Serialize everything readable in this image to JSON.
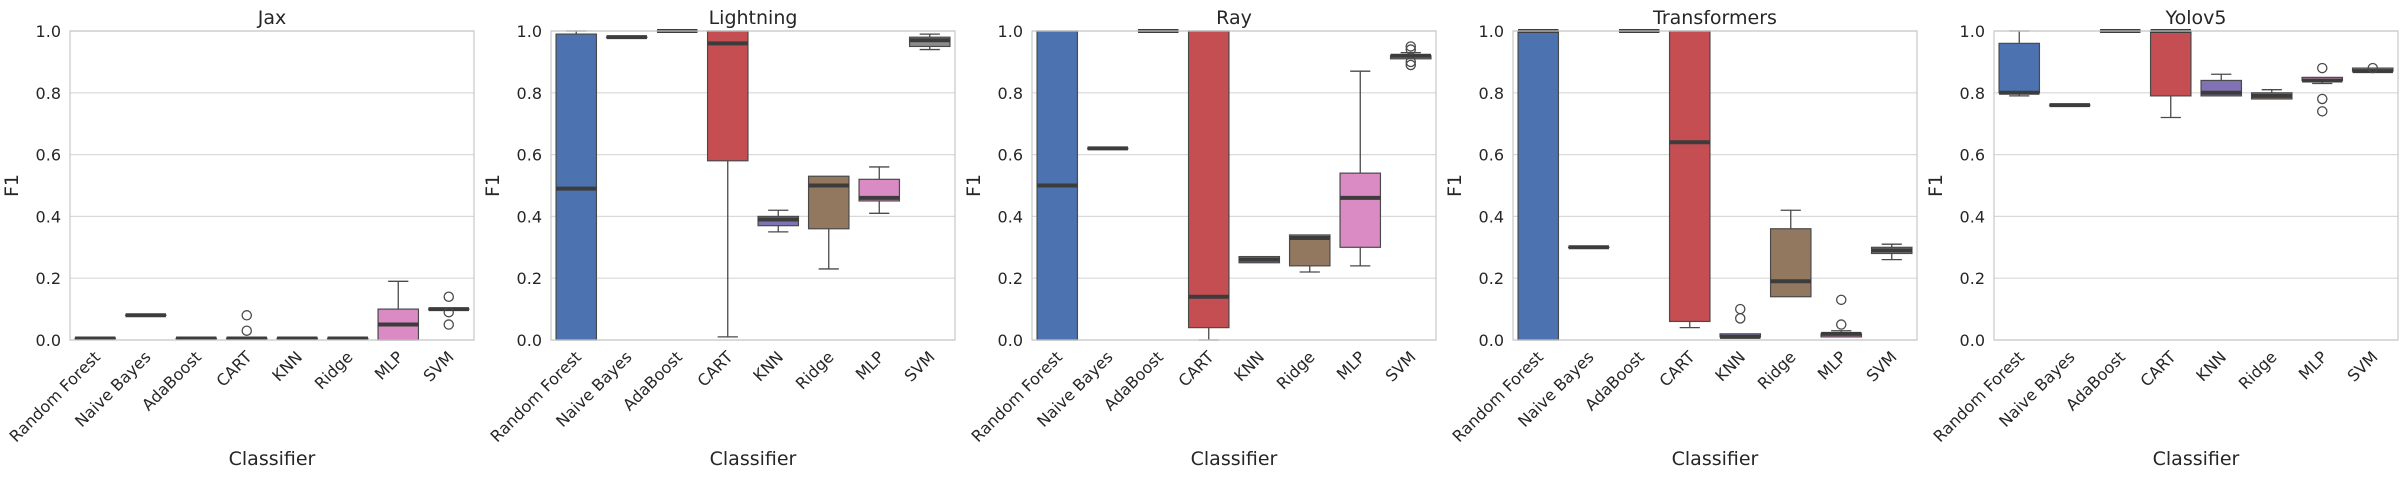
{
  "chart_data": [
    {
      "type": "box",
      "title": "Jax",
      "xlabel": "Classifier",
      "ylabel": "F1",
      "ylim": [
        0,
        1
      ],
      "yticks": [
        "0.0",
        "0.2",
        "0.4",
        "0.6",
        "0.8",
        "1.0"
      ],
      "categories": [
        "Random Forest",
        "Naive Bayes",
        "AdaBoost",
        "CART",
        "KNN",
        "Ridge",
        "MLP",
        "SVM"
      ],
      "boxes": [
        {
          "min": 0.005,
          "q1": 0.005,
          "median": 0.005,
          "q3": 0.005,
          "max": 0.005,
          "outliers": []
        },
        {
          "min": 0.08,
          "q1": 0.08,
          "median": 0.08,
          "q3": 0.08,
          "max": 0.08,
          "outliers": []
        },
        {
          "min": 0.005,
          "q1": 0.005,
          "median": 0.005,
          "q3": 0.005,
          "max": 0.005,
          "outliers": []
        },
        {
          "min": 0.005,
          "q1": 0.005,
          "median": 0.005,
          "q3": 0.005,
          "max": 0.005,
          "outliers": [
            0.03,
            0.08
          ]
        },
        {
          "min": 0.005,
          "q1": 0.005,
          "median": 0.005,
          "q3": 0.005,
          "max": 0.005,
          "outliers": []
        },
        {
          "min": 0.005,
          "q1": 0.005,
          "median": 0.005,
          "q3": 0.005,
          "max": 0.005,
          "outliers": []
        },
        {
          "min": 0.0,
          "q1": 0.0,
          "median": 0.05,
          "q3": 0.1,
          "max": 0.19,
          "outliers": []
        },
        {
          "min": 0.1,
          "q1": 0.1,
          "median": 0.1,
          "q3": 0.1,
          "max": 0.1,
          "outliers": [
            0.05,
            0.09,
            0.14
          ]
        }
      ]
    },
    {
      "type": "box",
      "title": "Lightning",
      "xlabel": "Classifier",
      "ylabel": "F1",
      "ylim": [
        0,
        1
      ],
      "yticks": [
        "0.0",
        "0.2",
        "0.4",
        "0.6",
        "0.8",
        "1.0"
      ],
      "categories": [
        "Random Forest",
        "Naive Bayes",
        "AdaBoost",
        "CART",
        "KNN",
        "Ridge",
        "MLP",
        "SVM"
      ],
      "boxes": [
        {
          "min": 0.0,
          "q1": 0.0,
          "median": 0.49,
          "q3": 0.99,
          "max": 1.0,
          "outliers": []
        },
        {
          "min": 0.98,
          "q1": 0.98,
          "median": 0.98,
          "q3": 0.98,
          "max": 0.98,
          "outliers": []
        },
        {
          "min": 1.0,
          "q1": 1.0,
          "median": 1.0,
          "q3": 1.0,
          "max": 1.0,
          "outliers": []
        },
        {
          "min": 0.01,
          "q1": 0.58,
          "median": 0.96,
          "q3": 1.0,
          "max": 1.0,
          "outliers": []
        },
        {
          "min": 0.35,
          "q1": 0.37,
          "median": 0.39,
          "q3": 0.4,
          "max": 0.42,
          "outliers": []
        },
        {
          "min": 0.23,
          "q1": 0.36,
          "median": 0.5,
          "q3": 0.53,
          "max": 0.53,
          "outliers": []
        },
        {
          "min": 0.41,
          "q1": 0.45,
          "median": 0.46,
          "q3": 0.52,
          "max": 0.56,
          "outliers": []
        },
        {
          "min": 0.94,
          "q1": 0.95,
          "median": 0.97,
          "q3": 0.98,
          "max": 0.99,
          "outliers": []
        }
      ]
    },
    {
      "type": "box",
      "title": "Ray",
      "xlabel": "Classifier",
      "ylabel": "F1",
      "ylim": [
        0,
        1
      ],
      "yticks": [
        "0.0",
        "0.2",
        "0.4",
        "0.6",
        "0.8",
        "1.0"
      ],
      "categories": [
        "Random Forest",
        "Naive Bayes",
        "AdaBoost",
        "CART",
        "KNN",
        "Ridge",
        "MLP",
        "SVM"
      ],
      "boxes": [
        {
          "min": 0.0,
          "q1": 0.0,
          "median": 0.5,
          "q3": 1.0,
          "max": 1.0,
          "outliers": []
        },
        {
          "min": 0.62,
          "q1": 0.62,
          "median": 0.62,
          "q3": 0.62,
          "max": 0.62,
          "outliers": []
        },
        {
          "min": 1.0,
          "q1": 1.0,
          "median": 1.0,
          "q3": 1.0,
          "max": 1.0,
          "outliers": []
        },
        {
          "min": 0.0,
          "q1": 0.04,
          "median": 0.14,
          "q3": 1.0,
          "max": 1.0,
          "outliers": []
        },
        {
          "min": 0.25,
          "q1": 0.25,
          "median": 0.26,
          "q3": 0.27,
          "max": 0.27,
          "outliers": []
        },
        {
          "min": 0.22,
          "q1": 0.24,
          "median": 0.33,
          "q3": 0.34,
          "max": 0.34,
          "outliers": []
        },
        {
          "min": 0.24,
          "q1": 0.3,
          "median": 0.46,
          "q3": 0.54,
          "max": 0.87,
          "outliers": []
        },
        {
          "min": 0.91,
          "q1": 0.91,
          "median": 0.92,
          "q3": 0.92,
          "max": 0.93,
          "outliers": [
            0.89,
            0.9,
            0.94,
            0.95
          ]
        }
      ]
    },
    {
      "type": "box",
      "title": "Transformers",
      "xlabel": "Classifier",
      "ylabel": "F1",
      "ylim": [
        0,
        1
      ],
      "yticks": [
        "0.0",
        "0.2",
        "0.4",
        "0.6",
        "0.8",
        "1.0"
      ],
      "categories": [
        "Random Forest",
        "Naive Bayes",
        "AdaBoost",
        "CART",
        "KNN",
        "Ridge",
        "MLP",
        "SVM"
      ],
      "boxes": [
        {
          "min": 0.0,
          "q1": 0.0,
          "median": 1.0,
          "q3": 1.0,
          "max": 1.0,
          "outliers": []
        },
        {
          "min": 0.3,
          "q1": 0.3,
          "median": 0.3,
          "q3": 0.3,
          "max": 0.3,
          "outliers": []
        },
        {
          "min": 1.0,
          "q1": 1.0,
          "median": 1.0,
          "q3": 1.0,
          "max": 1.0,
          "outliers": []
        },
        {
          "min": 0.04,
          "q1": 0.06,
          "median": 0.64,
          "q3": 1.0,
          "max": 1.0,
          "outliers": []
        },
        {
          "min": 0.01,
          "q1": 0.01,
          "median": 0.01,
          "q3": 0.02,
          "max": 0.02,
          "outliers": [
            0.07,
            0.1
          ]
        },
        {
          "min": 0.14,
          "q1": 0.14,
          "median": 0.19,
          "q3": 0.36,
          "max": 0.42,
          "outliers": []
        },
        {
          "min": 0.01,
          "q1": 0.01,
          "median": 0.02,
          "q3": 0.02,
          "max": 0.03,
          "outliers": [
            0.05,
            0.13
          ]
        },
        {
          "min": 0.26,
          "q1": 0.28,
          "median": 0.29,
          "q3": 0.3,
          "max": 0.31,
          "outliers": []
        }
      ]
    },
    {
      "type": "box",
      "title": "Yolov5",
      "xlabel": "Classifier",
      "ylabel": "F1",
      "ylim": [
        0,
        1
      ],
      "yticks": [
        "0.0",
        "0.2",
        "0.4",
        "0.6",
        "0.8",
        "1.0"
      ],
      "categories": [
        "Random Forest",
        "Naive Bayes",
        "AdaBoost",
        "CART",
        "KNN",
        "Ridge",
        "MLP",
        "SVM"
      ],
      "boxes": [
        {
          "min": 0.79,
          "q1": 0.8,
          "median": 0.8,
          "q3": 0.96,
          "max": 1.0,
          "outliers": []
        },
        {
          "min": 0.76,
          "q1": 0.76,
          "median": 0.76,
          "q3": 0.76,
          "max": 0.76,
          "outliers": []
        },
        {
          "min": 1.0,
          "q1": 1.0,
          "median": 1.0,
          "q3": 1.0,
          "max": 1.0,
          "outliers": []
        },
        {
          "min": 0.72,
          "q1": 0.79,
          "median": 1.0,
          "q3": 1.0,
          "max": 1.0,
          "outliers": []
        },
        {
          "min": 0.79,
          "q1": 0.79,
          "median": 0.8,
          "q3": 0.84,
          "max": 0.86,
          "outliers": []
        },
        {
          "min": 0.78,
          "q1": 0.78,
          "median": 0.79,
          "q3": 0.8,
          "max": 0.81,
          "outliers": []
        },
        {
          "min": 0.83,
          "q1": 0.84,
          "median": 0.84,
          "q3": 0.85,
          "max": 0.85,
          "outliers": [
            0.74,
            0.78,
            0.88
          ]
        },
        {
          "min": 0.87,
          "q1": 0.87,
          "median": 0.87,
          "q3": 0.88,
          "max": 0.88,
          "outliers": [
            0.88
          ]
        }
      ]
    }
  ],
  "colors": [
    "#4c72b0",
    "#dd8452",
    "#55a868",
    "#c44e52",
    "#8172b3",
    "#937860",
    "#da8bc3",
    "#8c8c8c"
  ]
}
